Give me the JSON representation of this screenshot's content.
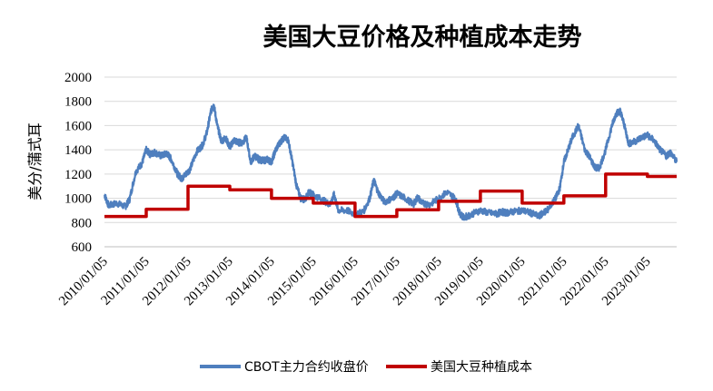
{
  "chart_data": {
    "type": "line",
    "title": "美国大豆价格及种植成本走势",
    "ylabel": "美分/蒲式耳",
    "xlabel": "",
    "ylim": [
      600,
      2000
    ],
    "yticks": [
      "600",
      "800",
      "1000",
      "1200",
      "1400",
      "1600",
      "1800",
      "2000"
    ],
    "xticks": [
      "2010/01/05",
      "2011/01/05",
      "2012/01/05",
      "2013/01/05",
      "2014/01/05",
      "2015/01/05",
      "2016/01/05",
      "2017/01/05",
      "2018/01/05",
      "2019/01/05",
      "2020/01/05",
      "2021/01/05",
      "2022/01/05",
      "2023/01/05"
    ],
    "grid": "horizontal",
    "legend_position": "bottom",
    "series": [
      {
        "name": "CBOT主力合约收盘价",
        "color": "#4f7fbe",
        "x": [
          2010.0,
          2010.1,
          2010.3,
          2010.5,
          2010.6,
          2010.75,
          2010.9,
          2011.0,
          2011.1,
          2011.2,
          2011.35,
          2011.5,
          2011.6,
          2011.75,
          2011.85,
          2011.95,
          2012.05,
          2012.2,
          2012.35,
          2012.45,
          2012.55,
          2012.62,
          2012.7,
          2012.8,
          2012.9,
          2013.0,
          2013.1,
          2013.2,
          2013.3,
          2013.4,
          2013.5,
          2013.6,
          2013.7,
          2013.8,
          2013.9,
          2014.0,
          2014.1,
          2014.2,
          2014.3,
          2014.4,
          2014.5,
          2014.6,
          2014.7,
          2014.8,
          2014.9,
          2015.0,
          2015.2,
          2015.4,
          2015.5,
          2015.6,
          2015.8,
          2016.0,
          2016.2,
          2016.35,
          2016.45,
          2016.55,
          2016.7,
          2016.9,
          2017.0,
          2017.2,
          2017.4,
          2017.5,
          2017.6,
          2017.8,
          2018.0,
          2018.2,
          2018.4,
          2018.5,
          2018.6,
          2018.8,
          2019.0,
          2019.2,
          2019.4,
          2019.5,
          2019.6,
          2019.8,
          2020.0,
          2020.2,
          2020.4,
          2020.5,
          2020.6,
          2020.8,
          2020.9,
          2021.0,
          2021.1,
          2021.2,
          2021.35,
          2021.5,
          2021.6,
          2021.75,
          2021.85,
          2022.0,
          2022.15,
          2022.25,
          2022.35,
          2022.45,
          2022.55,
          2022.7,
          2022.85,
          2023.0,
          2023.15,
          2023.3,
          2023.45,
          2023.55,
          2023.7
        ],
        "values": [
          1030,
          940,
          960,
          930,
          990,
          1220,
          1290,
          1400,
          1360,
          1380,
          1350,
          1370,
          1320,
          1200,
          1160,
          1200,
          1240,
          1380,
          1440,
          1540,
          1720,
          1770,
          1600,
          1470,
          1500,
          1420,
          1480,
          1460,
          1460,
          1500,
          1300,
          1350,
          1320,
          1310,
          1320,
          1300,
          1400,
          1460,
          1500,
          1480,
          1300,
          1100,
          1000,
          990,
          1050,
          1030,
          990,
          950,
          1030,
          900,
          900,
          870,
          890,
          1000,
          1150,
          1050,
          970,
          1000,
          1040,
          1000,
          950,
          1010,
          960,
          950,
          1000,
          1050,
          1000,
          880,
          840,
          870,
          900,
          880,
          870,
          890,
          880,
          890,
          900,
          880,
          850,
          880,
          900,
          1000,
          1080,
          1300,
          1400,
          1500,
          1600,
          1400,
          1350,
          1250,
          1250,
          1400,
          1600,
          1700,
          1720,
          1600,
          1450,
          1470,
          1500,
          1520,
          1480,
          1400,
          1350,
          1380,
          1300
        ]
      },
      {
        "name": "美国大豆种植成本",
        "color": "#c00000",
        "x": [
          2010.0,
          2011.0,
          2011.0,
          2012.0,
          2012.0,
          2013.0,
          2013.0,
          2014.0,
          2014.0,
          2015.0,
          2015.0,
          2016.0,
          2016.0,
          2017.0,
          2017.0,
          2018.0,
          2018.0,
          2019.0,
          2019.0,
          2020.0,
          2020.0,
          2021.0,
          2021.0,
          2022.0,
          2022.0,
          2023.0,
          2023.0,
          2023.7
        ],
        "values": [
          850,
          850,
          910,
          910,
          1100,
          1100,
          1070,
          1070,
          1000,
          1000,
          960,
          960,
          850,
          850,
          905,
          905,
          975,
          975,
          1060,
          1060,
          960,
          960,
          1020,
          1020,
          1200,
          1200,
          1180,
          1180
        ]
      }
    ]
  }
}
